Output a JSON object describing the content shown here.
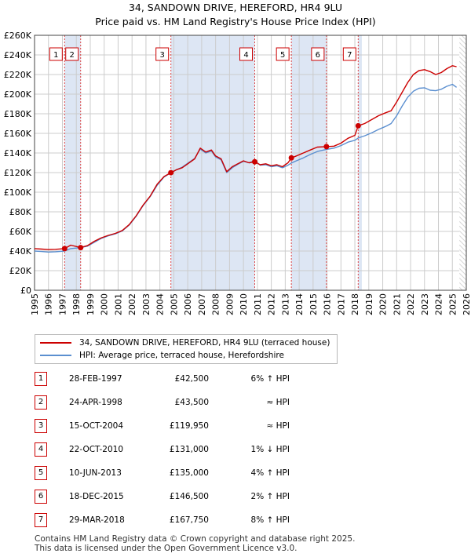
{
  "title_line1": "34, SANDOWN DRIVE, HEREFORD, HR4 9LU",
  "title_line2": "Price paid vs. HM Land Registry's House Price Index (HPI)",
  "colors": {
    "property_line": "#cc0000",
    "hpi_line": "#5b8fd0",
    "shade": "#dde6f4",
    "marker_border": "#cc0000",
    "grid": "#cccccc"
  },
  "chart_data": {
    "type": "line",
    "title": "34, SANDOWN DRIVE, HEREFORD, HR4 9LU — Price paid vs. HM Land Registry's House Price Index (HPI)",
    "xlim": [
      1995.0,
      2026.0
    ],
    "ylim": [
      0,
      260000
    ],
    "x_ticks": [
      1995,
      1996,
      1997,
      1998,
      1999,
      2000,
      2001,
      2002,
      2003,
      2004,
      2005,
      2006,
      2007,
      2008,
      2009,
      2010,
      2011,
      2012,
      2013,
      2014,
      2015,
      2016,
      2017,
      2018,
      2019,
      2020,
      2021,
      2022,
      2023,
      2024,
      2025,
      2026
    ],
    "y_ticks": [
      0,
      20000,
      40000,
      60000,
      80000,
      100000,
      120000,
      140000,
      160000,
      180000,
      200000,
      220000,
      240000,
      260000
    ],
    "y_tick_labels": [
      "£0",
      "£20K",
      "£40K",
      "£60K",
      "£80K",
      "£100K",
      "£120K",
      "£140K",
      "£160K",
      "£180K",
      "£200K",
      "£220K",
      "£240K",
      "£260K"
    ],
    "shaded_spans": [
      [
        1997.16,
        1998.31
      ],
      [
        2004.79,
        2010.81
      ],
      [
        2013.44,
        2015.96
      ],
      [
        2018.24,
        2018.5
      ]
    ],
    "forecast_start": 2025.5,
    "series": [
      {
        "name": "34, SANDOWN DRIVE, HEREFORD, HR4 9LU (terraced house)",
        "color": "#cc0000",
        "x": [
          1995.0,
          1995.5,
          1996.0,
          1996.5,
          1997.16,
          1997.6,
          1998.31,
          1998.8,
          1999.3,
          1999.8,
          2000.3,
          2000.8,
          2001.3,
          2001.8,
          2002.3,
          2002.8,
          2003.3,
          2003.8,
          2004.3,
          2004.79,
          2005.2,
          2005.6,
          2006.0,
          2006.5,
          2006.9,
          2007.3,
          2007.7,
          2008.0,
          2008.4,
          2008.8,
          2009.2,
          2009.6,
          2010.0,
          2010.4,
          2010.81,
          2011.2,
          2011.6,
          2012.0,
          2012.4,
          2012.8,
          2013.2,
          2013.44,
          2013.8,
          2014.3,
          2014.8,
          2015.3,
          2015.96,
          2016.5,
          2017.0,
          2017.5,
          2018.0,
          2018.24,
          2018.7,
          2019.2,
          2019.7,
          2020.2,
          2020.6,
          2021.0,
          2021.4,
          2021.8,
          2022.2,
          2022.6,
          2023.0,
          2023.4,
          2023.8,
          2024.2,
          2024.6,
          2025.0,
          2025.3
        ],
        "values": [
          42500,
          42000,
          41500,
          41800,
          42500,
          46000,
          43500,
          45500,
          50000,
          53500,
          56000,
          58000,
          61000,
          67000,
          76000,
          87000,
          96000,
          108000,
          116000,
          119950,
          123000,
          125000,
          129000,
          134000,
          145000,
          141000,
          143000,
          137000,
          134000,
          121000,
          126000,
          129000,
          132000,
          130000,
          131000,
          128000,
          129000,
          127000,
          128000,
          126000,
          130000,
          135000,
          137000,
          140000,
          143000,
          146000,
          146500,
          147000,
          150000,
          155000,
          158000,
          167750,
          170000,
          174000,
          178000,
          181000,
          183000,
          192000,
          202000,
          212000,
          220000,
          224000,
          225000,
          223000,
          220000,
          222000,
          226000,
          229000,
          228000
        ]
      },
      {
        "name": "HPI: Average price, terraced house, Herefordshire",
        "color": "#5b8fd0",
        "x": [
          1995.0,
          1995.5,
          1996.0,
          1996.5,
          1997.16,
          1997.6,
          1998.31,
          1998.8,
          1999.3,
          1999.8,
          2000.3,
          2000.8,
          2001.3,
          2001.8,
          2002.3,
          2002.8,
          2003.3,
          2003.8,
          2004.3,
          2004.79,
          2005.2,
          2005.6,
          2006.0,
          2006.5,
          2006.9,
          2007.3,
          2007.7,
          2008.0,
          2008.4,
          2008.8,
          2009.2,
          2009.6,
          2010.0,
          2010.4,
          2010.81,
          2011.2,
          2011.6,
          2012.0,
          2012.4,
          2012.8,
          2013.2,
          2013.44,
          2013.8,
          2014.3,
          2014.8,
          2015.3,
          2015.96,
          2016.5,
          2017.0,
          2017.5,
          2018.0,
          2018.24,
          2018.7,
          2019.2,
          2019.7,
          2020.2,
          2020.6,
          2021.0,
          2021.4,
          2021.8,
          2022.2,
          2022.6,
          2023.0,
          2023.4,
          2023.8,
          2024.2,
          2024.6,
          2025.0,
          2025.3
        ],
        "values": [
          40000,
          39500,
          39000,
          39300,
          40000,
          42500,
          43500,
          45000,
          49000,
          53000,
          55500,
          57500,
          60500,
          66500,
          75500,
          86500,
          95500,
          107000,
          115500,
          119900,
          123000,
          125500,
          129500,
          134500,
          144000,
          140000,
          142000,
          136000,
          133000,
          120000,
          125000,
          128500,
          131500,
          130000,
          132300,
          127500,
          128000,
          126000,
          127000,
          125000,
          127500,
          129800,
          132000,
          135000,
          138500,
          141500,
          143700,
          145000,
          147500,
          151000,
          153000,
          155300,
          157500,
          160500,
          164000,
          167000,
          170000,
          178000,
          188000,
          197000,
          203000,
          206000,
          206500,
          204000,
          203500,
          205000,
          208000,
          210000,
          207000
        ]
      }
    ],
    "transactions": [
      {
        "label": "1",
        "date": "28-FEB-1997",
        "price": "£42,500",
        "hpi": "6% ↑ HPI",
        "x": 1997.16,
        "value": 42500
      },
      {
        "label": "2",
        "date": "24-APR-1998",
        "price": "£43,500",
        "hpi": "≈ HPI",
        "x": 1998.31,
        "value": 43500
      },
      {
        "label": "3",
        "date": "15-OCT-2004",
        "price": "£119,950",
        "hpi": "≈ HPI",
        "x": 2004.79,
        "value": 119950
      },
      {
        "label": "4",
        "date": "22-OCT-2010",
        "price": "£131,000",
        "hpi": "1% ↓ HPI",
        "x": 2010.81,
        "value": 131000
      },
      {
        "label": "5",
        "date": "10-JUN-2013",
        "price": "£135,000",
        "hpi": "4% ↑ HPI",
        "x": 2013.44,
        "value": 135000
      },
      {
        "label": "6",
        "date": "18-DEC-2015",
        "price": "£146,500",
        "hpi": "2% ↑ HPI",
        "x": 2015.96,
        "value": 146500
      },
      {
        "label": "7",
        "date": "29-MAR-2018",
        "price": "£167,750",
        "hpi": "8% ↑ HPI",
        "x": 2018.24,
        "value": 167750
      }
    ]
  },
  "legend": {
    "property_label": "34, SANDOWN DRIVE, HEREFORD, HR4 9LU (terraced house)",
    "hpi_label": "HPI: Average price, terraced house, Herefordshire"
  },
  "footer_line1": "Contains HM Land Registry data © Crown copyright and database right 2025.",
  "footer_line2": "This data is licensed under the Open Government Licence v3.0."
}
